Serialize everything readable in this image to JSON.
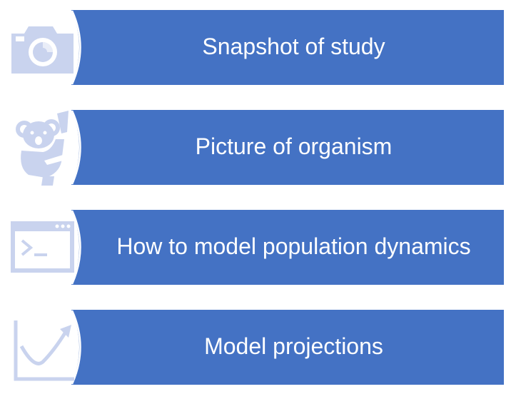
{
  "colors": {
    "bar": "#4472c4",
    "icon": "#c9d3ee",
    "ring": "#ffffff",
    "label": "#ffffff"
  },
  "items": [
    {
      "label": "Snapshot of study",
      "icon": "camera-icon"
    },
    {
      "label": "Picture of organism",
      "icon": "koala-icon"
    },
    {
      "label": "How to model population dynamics",
      "icon": "terminal-icon"
    },
    {
      "label": "Model projections",
      "icon": "trend-chart-icon"
    }
  ]
}
